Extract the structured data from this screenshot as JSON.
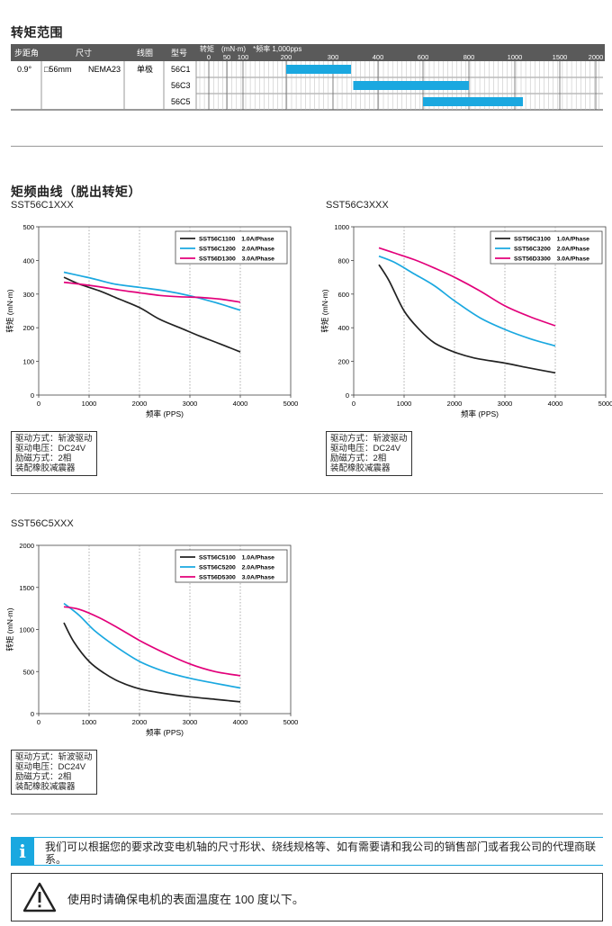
{
  "torque_range": {
    "title": "转矩范围",
    "headers": {
      "step_angle": "步距角",
      "size": "尺寸",
      "coil": "线圈",
      "model": "型号",
      "torque": "转矩　(mN·m)　*频率 1,000pps"
    },
    "scale_labels": [
      "0",
      "50",
      "100",
      "200",
      "300",
      "400",
      "600",
      "800",
      "1000",
      "1500",
      "2000"
    ],
    "row": {
      "step_angle": "0.9°",
      "size": "□56mm",
      "frame": "NEMA23",
      "coil": "单极"
    },
    "models": [
      {
        "label": "56C1",
        "min": 200,
        "max": 340
      },
      {
        "label": "56C3",
        "min": 345,
        "max": 800
      },
      {
        "label": "56C5",
        "min": 600,
        "max": 1090
      }
    ],
    "bar_color": "#1aa8e0"
  },
  "curves": {
    "title": "矩频曲线（脱出转矩）",
    "xlabel": "频率 (PPS)",
    "ylabel": "转矩 (mN·m)",
    "colors": {
      "black": "#222222",
      "blue": "#1aa8e0",
      "magenta": "#e2007a"
    }
  },
  "notes": {
    "drive": "驱动方式：斩波驱动",
    "voltage": "驱动电压：DC24V",
    "excitation": "励磁方式：2相",
    "damper": "装配橡胶减震器"
  },
  "chart_data": [
    {
      "type": "line",
      "title": "SST56C1XXX",
      "xlabel": "频率 (PPS)",
      "ylabel": "转矩 (mN·m)",
      "xlim": [
        0,
        5000
      ],
      "ylim": [
        0,
        500
      ],
      "xticks": [
        0,
        1000,
        2000,
        3000,
        4000,
        5000
      ],
      "yticks": [
        0,
        100,
        200,
        300,
        400,
        500
      ],
      "grid": "vertical-dotted",
      "legend": "top-right",
      "series": [
        {
          "name": "SST56C1100　1.0A/Phase",
          "color": "#222222",
          "x": [
            500,
            800,
            1200,
            1600,
            2000,
            2400,
            2800,
            3200,
            3600,
            4000
          ],
          "y": [
            350,
            330,
            310,
            285,
            260,
            225,
            200,
            175,
            152,
            128
          ]
        },
        {
          "name": "SST56C1200　2.0A/Phase",
          "color": "#1aa8e0",
          "x": [
            500,
            800,
            1100,
            1500,
            2000,
            2500,
            3000,
            3500,
            4000
          ],
          "y": [
            365,
            355,
            345,
            330,
            320,
            310,
            295,
            275,
            252
          ]
        },
        {
          "name": "SST56D1300　3.0A/Phase",
          "color": "#e2007a",
          "x": [
            500,
            800,
            1200,
            1600,
            2000,
            2400,
            2800,
            3200,
            3600,
            4000
          ],
          "y": [
            335,
            330,
            322,
            312,
            304,
            296,
            292,
            290,
            285,
            276
          ]
        }
      ]
    },
    {
      "type": "line",
      "title": "SST56C3XXX",
      "xlabel": "频率 (PPS)",
      "ylabel": "转矩 (mN·m)",
      "xlim": [
        0,
        5000
      ],
      "ylim": [
        0,
        1000
      ],
      "xticks": [
        0,
        1000,
        2000,
        3000,
        4000,
        5000
      ],
      "yticks": [
        0,
        200,
        400,
        600,
        800,
        1000
      ],
      "grid": "vertical-dotted",
      "legend": "top-right",
      "series": [
        {
          "name": "SST56C3100　1.0A/Phase",
          "color": "#222222",
          "x": [
            500,
            700,
            1000,
            1300,
            1600,
            2000,
            2400,
            3000,
            3500,
            4000
          ],
          "y": [
            775,
            680,
            500,
            390,
            310,
            255,
            220,
            190,
            160,
            132
          ]
        },
        {
          "name": "SST56C3200　2.0A/Phase",
          "color": "#1aa8e0",
          "x": [
            500,
            800,
            1200,
            1600,
            2000,
            2500,
            3000,
            3500,
            4000
          ],
          "y": [
            825,
            790,
            720,
            650,
            560,
            460,
            390,
            335,
            292
          ]
        },
        {
          "name": "SST56D3300　3.0A/Phase",
          "color": "#e2007a",
          "x": [
            500,
            800,
            1200,
            1600,
            2000,
            2500,
            3000,
            3500,
            4000
          ],
          "y": [
            875,
            845,
            805,
            755,
            700,
            620,
            530,
            465,
            412
          ]
        }
      ]
    },
    {
      "type": "line",
      "title": "SST56C5XXX",
      "xlabel": "频率 (PPS)",
      "ylabel": "转矩 (mN·m)",
      "xlim": [
        0,
        5000
      ],
      "ylim": [
        0,
        2000
      ],
      "xticks": [
        0,
        1000,
        2000,
        3000,
        4000,
        5000
      ],
      "yticks": [
        0,
        500,
        1000,
        1500,
        2000
      ],
      "grid": "vertical-dotted",
      "legend": "top-right",
      "series": [
        {
          "name": "SST56C5100　1.0A/Phase",
          "color": "#222222",
          "x": [
            500,
            700,
            1000,
            1300,
            1600,
            2000,
            2500,
            3000,
            3500,
            4000
          ],
          "y": [
            1080,
            850,
            620,
            480,
            380,
            295,
            240,
            200,
            170,
            140
          ]
        },
        {
          "name": "SST56C5200　2.0A/Phase",
          "color": "#1aa8e0",
          "x": [
            500,
            800,
            1100,
            1500,
            2000,
            2500,
            3000,
            3500,
            4000
          ],
          "y": [
            1310,
            1170,
            990,
            810,
            620,
            500,
            420,
            360,
            305
          ]
        },
        {
          "name": "SST56D5300　3.0A/Phase",
          "color": "#e2007a",
          "x": [
            500,
            800,
            1200,
            1600,
            2000,
            2500,
            3000,
            3500,
            4000
          ],
          "y": [
            1270,
            1240,
            1140,
            1010,
            870,
            720,
            590,
            500,
            450
          ]
        }
      ]
    }
  ],
  "info": {
    "icon": "info-icon",
    "text": "我们可以根据您的要求改变电机轴的尺寸形状、绕线规格等、如有需要请和我公司的销售部门或者我公司的代理商联系。"
  },
  "warning": {
    "icon": "warning-triangle-icon",
    "text": "使用时请确保电机的表面温度在 100 度以下。"
  }
}
